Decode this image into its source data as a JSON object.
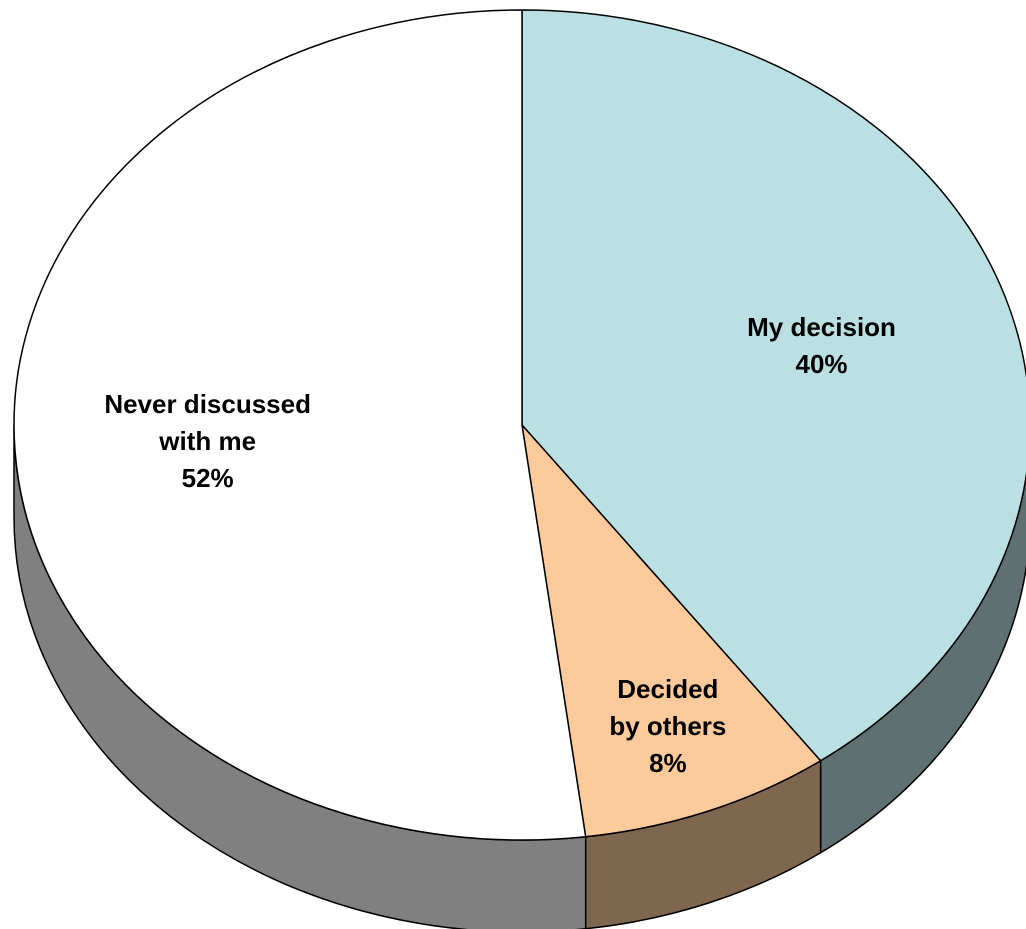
{
  "chart_data": {
    "type": "pie",
    "title": "",
    "style": "3d",
    "slices": [
      {
        "label": "My decision",
        "value": 40,
        "display": "40%",
        "color": "#bbe0e3",
        "side_color": "#5e7072"
      },
      {
        "label": "Decided by others",
        "value": 8,
        "display": "8%",
        "color": "#fdcb9b",
        "side_color": "#7f664e"
      },
      {
        "label": "Never discussed with me",
        "value": 52,
        "display": "52%",
        "color": "#ffffff",
        "side_color": "#808080"
      }
    ],
    "label_lines": [
      [
        "My decision",
        "40%"
      ],
      [
        "Decided",
        "by others",
        "8%"
      ],
      [
        "Never discussed",
        "with me",
        "52%"
      ]
    ],
    "legend": "none"
  }
}
